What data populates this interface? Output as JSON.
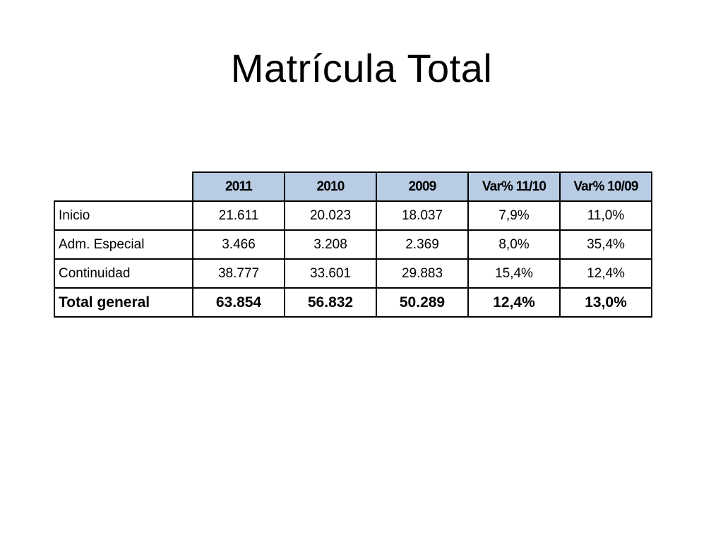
{
  "slide": {
    "title": "Matrícula Total"
  },
  "table": {
    "headers": [
      "2011",
      "2010",
      "2009",
      "Var% 11/10",
      "Var% 10/09"
    ],
    "rows": [
      {
        "label": "Inicio",
        "values": [
          "21.611",
          "20.023",
          "18.037",
          "7,9%",
          "11,0%"
        ]
      },
      {
        "label": "Adm. Especial",
        "values": [
          "3.466",
          "3.208",
          "2.369",
          "8,0%",
          "35,4%"
        ]
      },
      {
        "label": "Continuidad",
        "values": [
          "38.777",
          "33.601",
          "29.883",
          "15,4%",
          "12,4%"
        ]
      },
      {
        "label": "Total general",
        "values": [
          "63.854",
          "56.832",
          "50.289",
          "12,4%",
          "13,0%"
        ]
      }
    ],
    "header_fill_color": "#b8cce4",
    "border_color": "#000000"
  }
}
